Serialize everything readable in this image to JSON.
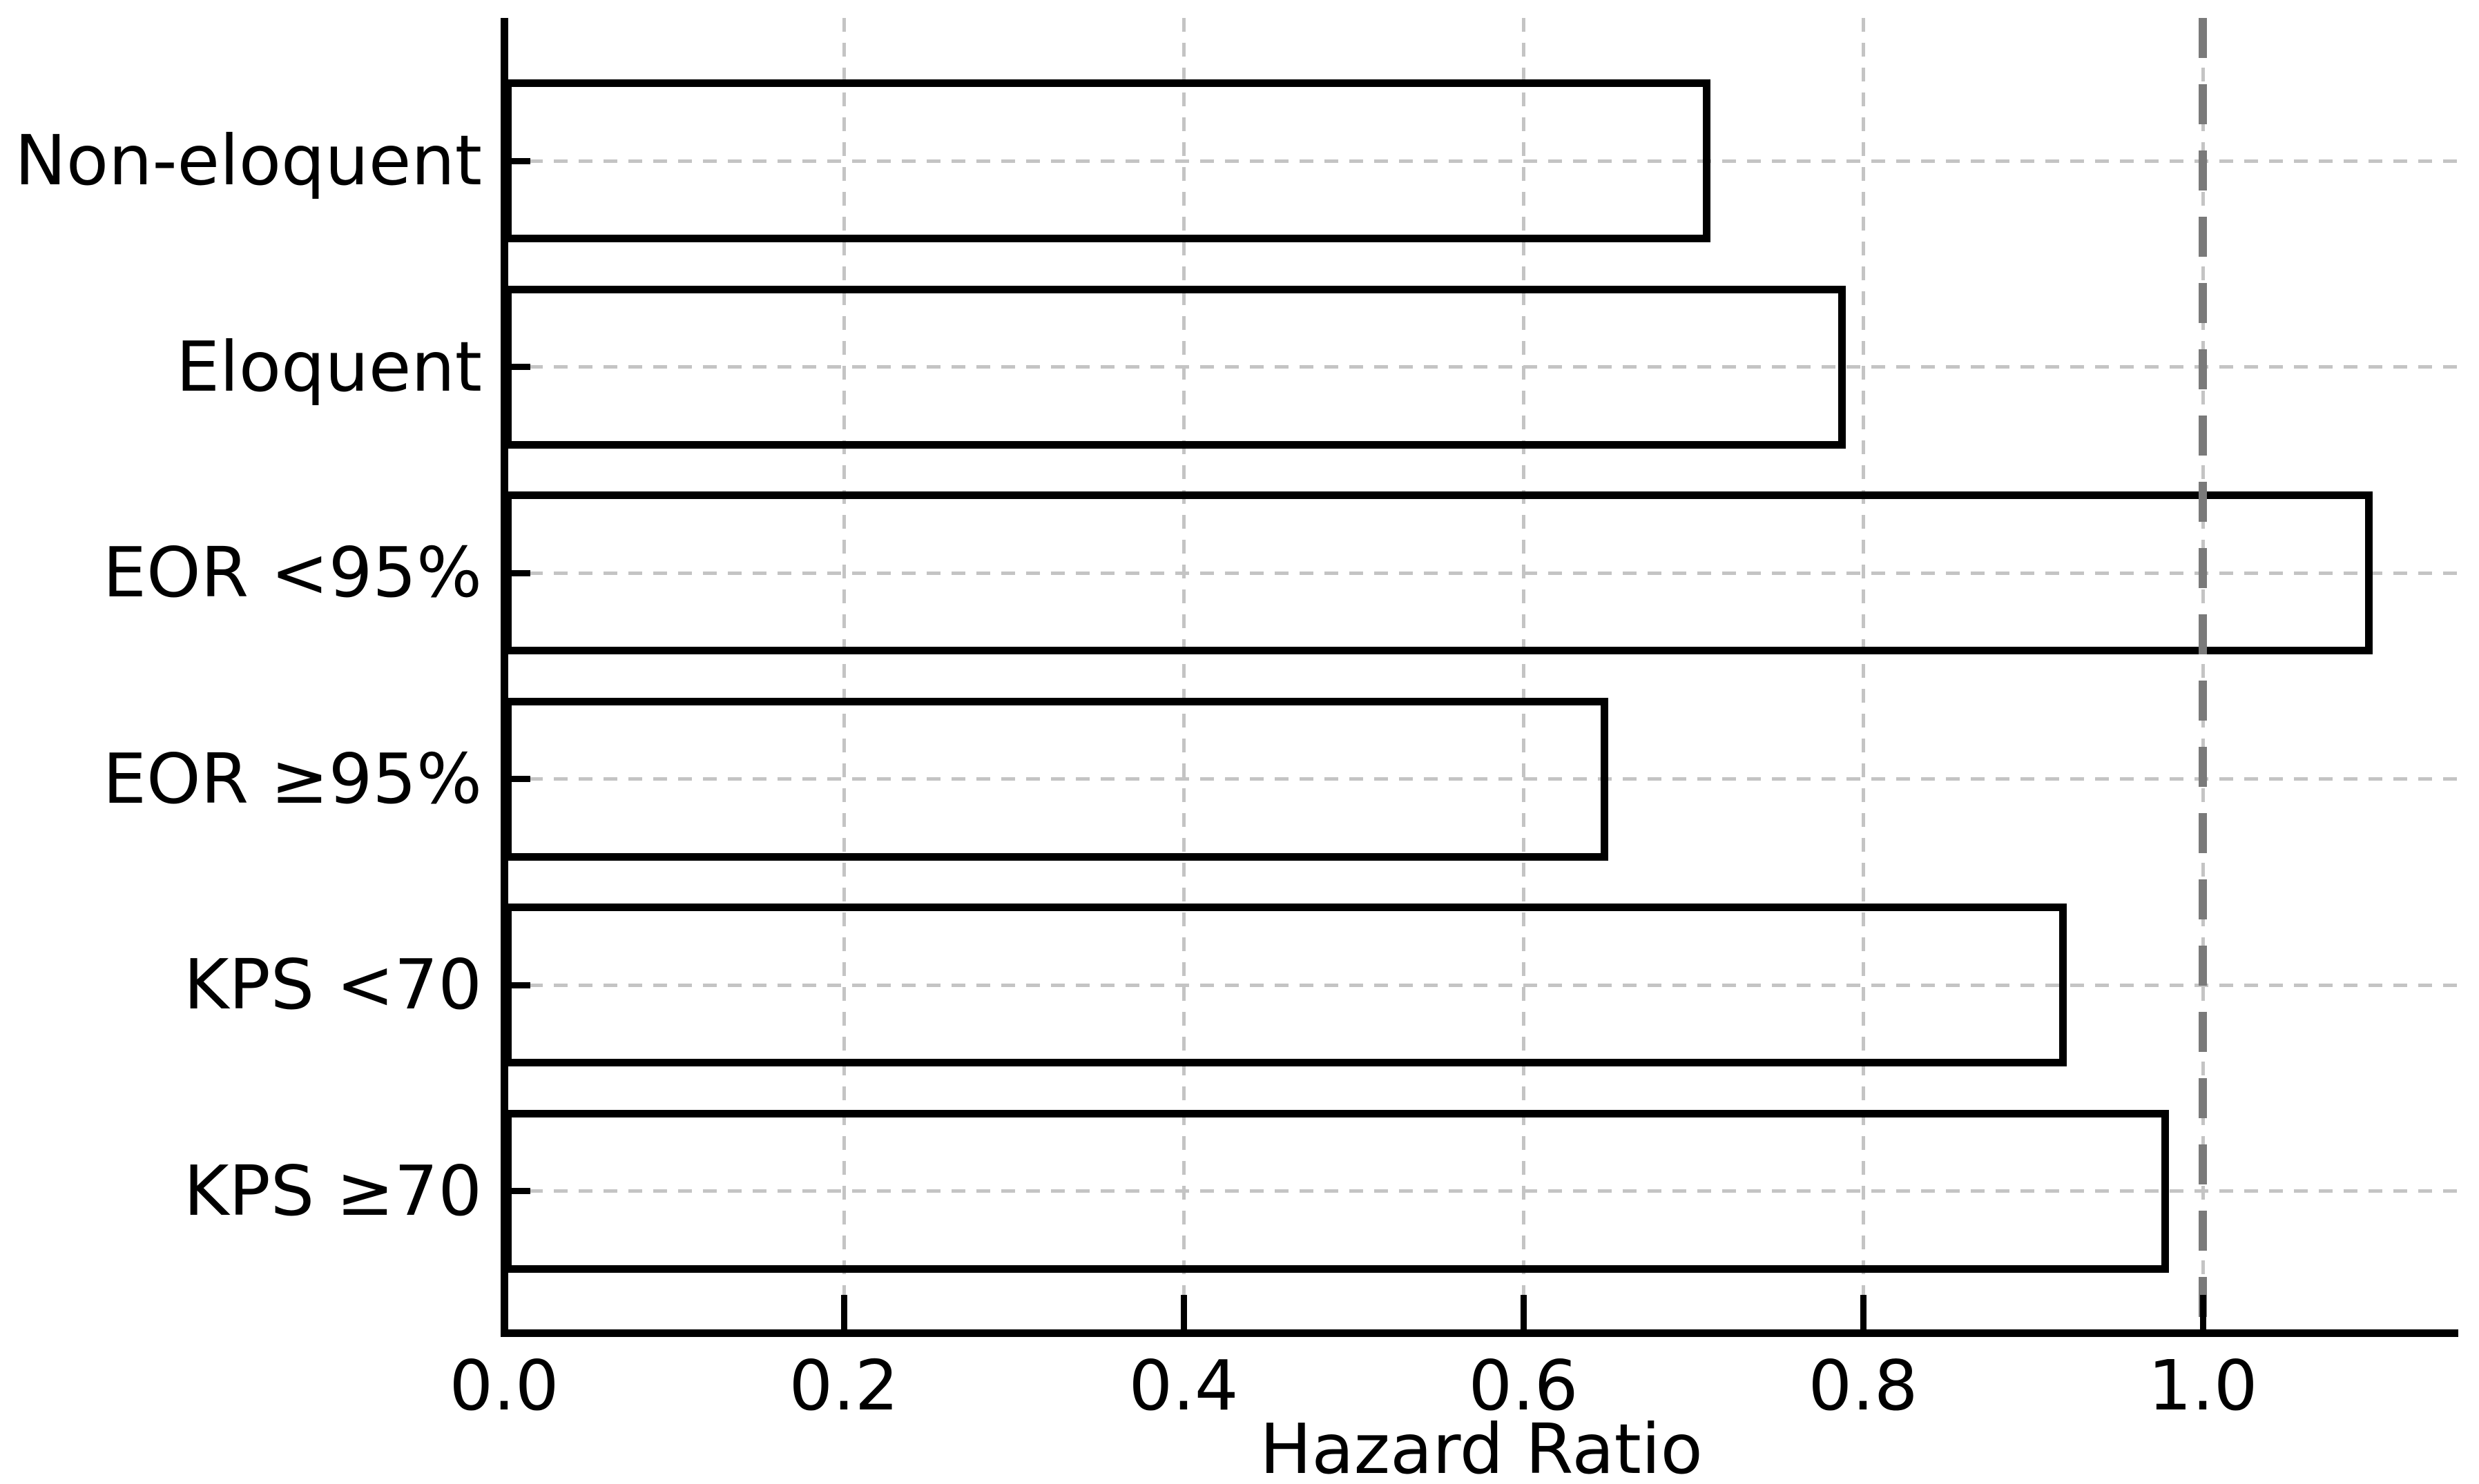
{
  "figure": {
    "kind": "horizontal-bar-chart",
    "background": "#ffffff",
    "text_color": "#000000"
  },
  "chart_data": {
    "type": "bar",
    "orientation": "horizontal",
    "title": "",
    "xlabel": "Hazard Ratio",
    "ylabel": "",
    "categories": [
      "Non-eloquent",
      "Eloquent",
      "EOR <95%",
      "EOR ≥95%",
      "KPS <70",
      "KPS ≥70"
    ],
    "values": [
      0.71,
      0.79,
      1.1,
      0.65,
      0.92,
      0.98
    ],
    "xlim": [
      0,
      1.15
    ],
    "xticks": [
      {
        "value": 0.0,
        "label": "0.0"
      },
      {
        "value": 0.2,
        "label": "0.2"
      },
      {
        "value": 0.4,
        "label": "0.4"
      },
      {
        "value": 0.6,
        "label": "0.6"
      },
      {
        "value": 0.8,
        "label": "0.8"
      },
      {
        "value": 1.0,
        "label": "1.0"
      }
    ],
    "reference_line": {
      "x": 1.0,
      "style": "dashed",
      "color": "#7a7a7a"
    },
    "grid": {
      "on": true,
      "style": "dashed",
      "color": "#c4c4c4",
      "axes": "both"
    },
    "legend": "none",
    "bar_style": {
      "fill": "transparent",
      "edge_color": "#000000"
    }
  }
}
